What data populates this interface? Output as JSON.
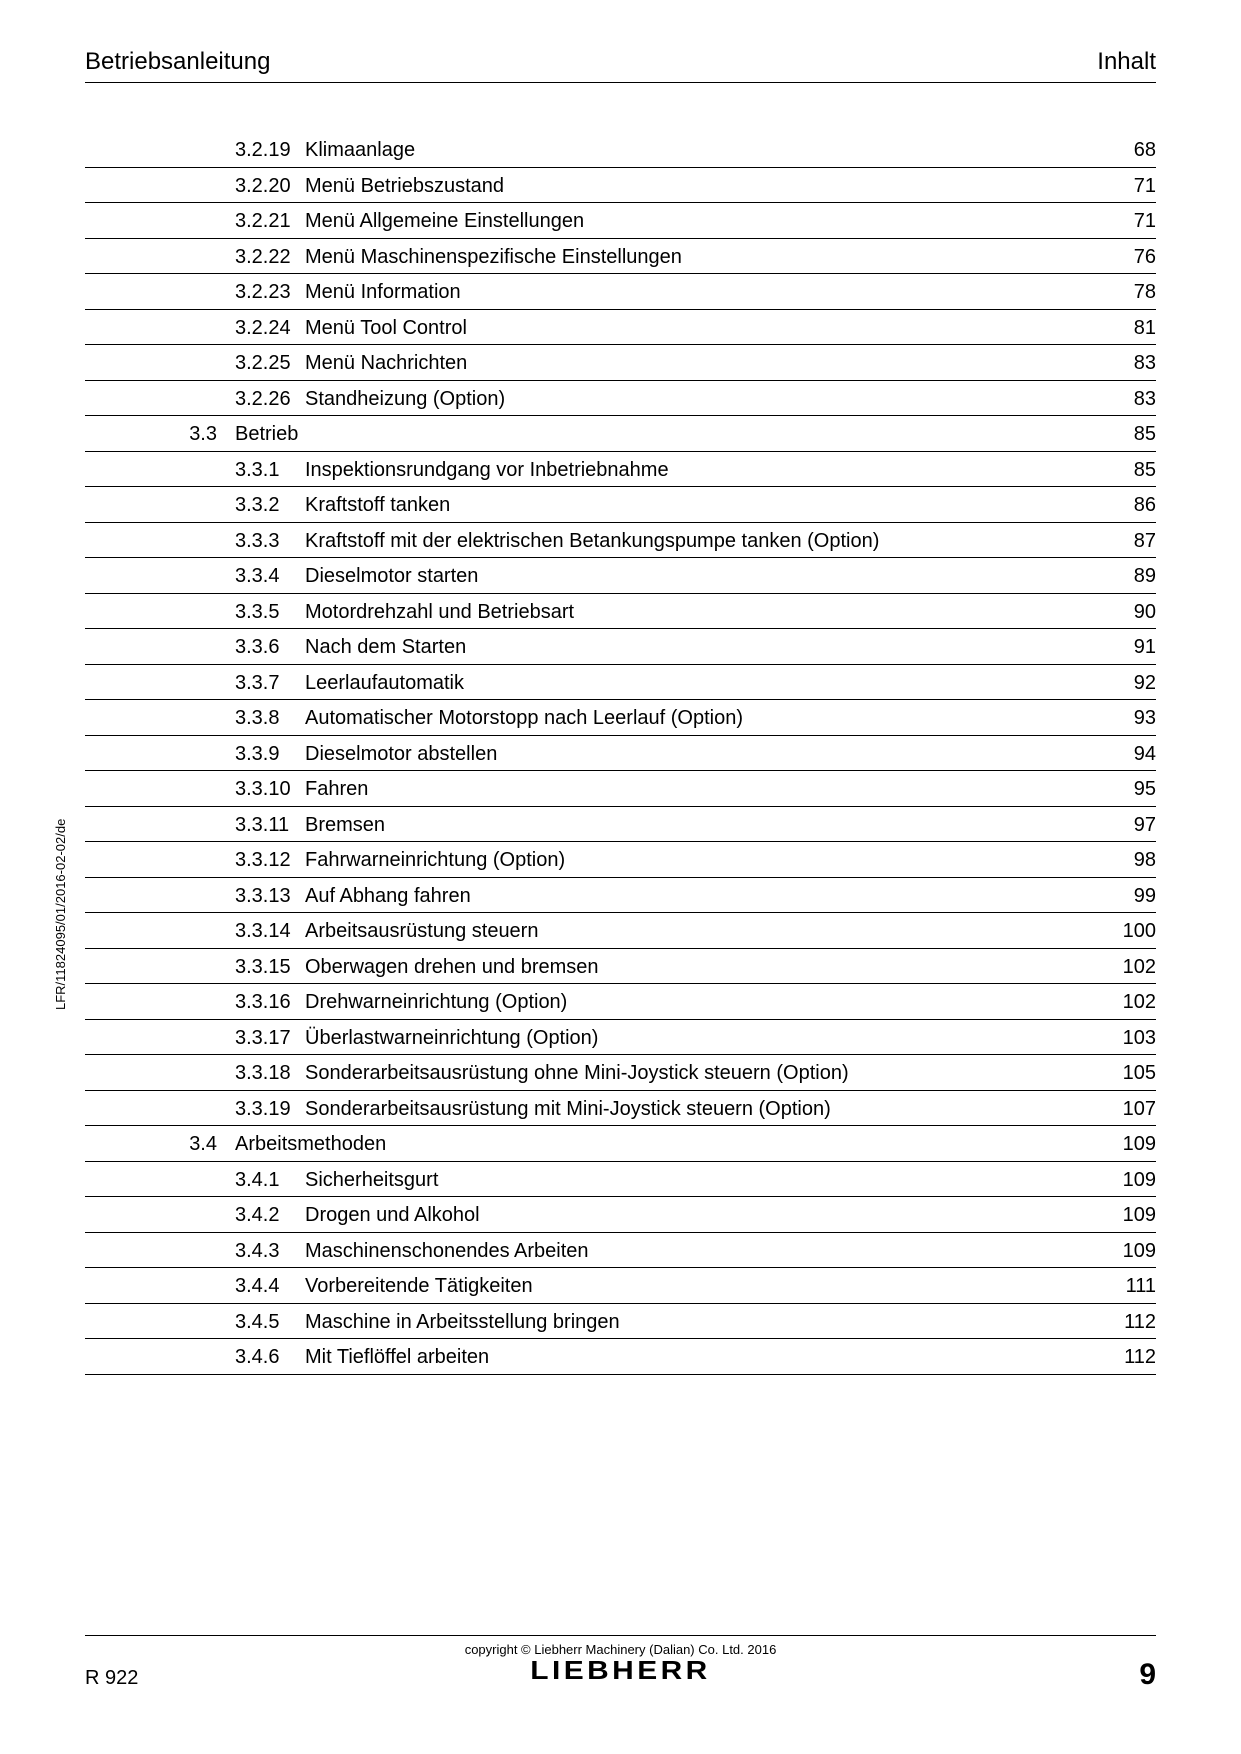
{
  "header": {
    "left": "Betriebsanleitung",
    "right": "Inhalt"
  },
  "sideLabel": "LFR/11824095/01/2016-02-02/de",
  "footer": {
    "copyright": "copyright © Liebherr Machinery (Dalian) Co. Ltd. 2016",
    "logo": "LIEBHERR",
    "model": "R 922",
    "pageNumber": "9"
  },
  "toc": [
    {
      "section": "",
      "num": "3.2.19",
      "title": "Klimaanlage",
      "page": "68"
    },
    {
      "section": "",
      "num": "3.2.20",
      "title": "Menü Betriebszustand",
      "page": "71"
    },
    {
      "section": "",
      "num": "3.2.21",
      "title": "Menü Allgemeine Einstellungen",
      "page": "71"
    },
    {
      "section": "",
      "num": "3.2.22",
      "title": "Menü Maschinenspezifische Einstellungen",
      "page": "76"
    },
    {
      "section": "",
      "num": "3.2.23",
      "title": "Menü Information",
      "page": "78"
    },
    {
      "section": "",
      "num": "3.2.24",
      "title": "Menü Tool Control",
      "page": "81"
    },
    {
      "section": "",
      "num": "3.2.25",
      "title": "Menü Nachrichten",
      "page": "83"
    },
    {
      "section": "",
      "num": "3.2.26",
      "title": "Standheizung (Option)",
      "page": "83"
    },
    {
      "section": "3.3",
      "num": "Betrieb",
      "title": "",
      "page": "85",
      "isSection": true
    },
    {
      "section": "",
      "num": "3.3.1",
      "title": "Inspektionsrundgang vor Inbetriebnahme",
      "page": "85"
    },
    {
      "section": "",
      "num": "3.3.2",
      "title": "Kraftstoff tanken",
      "page": "86"
    },
    {
      "section": "",
      "num": "3.3.3",
      "title": "Kraftstoff mit der elektrischen Betankungspumpe tanken (Option)",
      "page": "87"
    },
    {
      "section": "",
      "num": "3.3.4",
      "title": "Dieselmotor starten",
      "page": "89"
    },
    {
      "section": "",
      "num": "3.3.5",
      "title": "Motordrehzahl und Betriebsart",
      "page": "90"
    },
    {
      "section": "",
      "num": "3.3.6",
      "title": "Nach dem Starten",
      "page": "91"
    },
    {
      "section": "",
      "num": "3.3.7",
      "title": "Leerlaufautomatik",
      "page": "92"
    },
    {
      "section": "",
      "num": "3.3.8",
      "title": "Automatischer Motorstopp nach Leerlauf (Option)",
      "page": "93"
    },
    {
      "section": "",
      "num": "3.3.9",
      "title": "Dieselmotor abstellen",
      "page": "94"
    },
    {
      "section": "",
      "num": "3.3.10",
      "title": "Fahren",
      "page": "95"
    },
    {
      "section": "",
      "num": "3.3.11",
      "title": "Bremsen",
      "page": "97"
    },
    {
      "section": "",
      "num": "3.3.12",
      "title": "Fahrwarneinrichtung (Option)",
      "page": "98"
    },
    {
      "section": "",
      "num": "3.3.13",
      "title": "Auf Abhang fahren",
      "page": "99"
    },
    {
      "section": "",
      "num": "3.3.14",
      "title": "Arbeitsausrüstung steuern",
      "page": "100"
    },
    {
      "section": "",
      "num": "3.3.15",
      "title": "Oberwagen drehen und bremsen",
      "page": "102"
    },
    {
      "section": "",
      "num": "3.3.16",
      "title": "Drehwarneinrichtung (Option)",
      "page": "102"
    },
    {
      "section": "",
      "num": "3.3.17",
      "title": "Überlastwarneinrichtung (Option)",
      "page": "103"
    },
    {
      "section": "",
      "num": "3.3.18",
      "title": "Sonderarbeitsausrüstung ohne Mini-Joystick steuern (Option)",
      "page": "105"
    },
    {
      "section": "",
      "num": "3.3.19",
      "title": "Sonderarbeitsausrüstung mit Mini-Joystick steuern (Option)",
      "page": "107"
    },
    {
      "section": "3.4",
      "num": "Arbeitsmethoden",
      "title": "",
      "page": "109",
      "isSection": true
    },
    {
      "section": "",
      "num": "3.4.1",
      "title": "Sicherheitsgurt",
      "page": "109"
    },
    {
      "section": "",
      "num": "3.4.2",
      "title": "Drogen und Alkohol",
      "page": "109"
    },
    {
      "section": "",
      "num": "3.4.3",
      "title": "Maschinenschonendes Arbeiten",
      "page": "109"
    },
    {
      "section": "",
      "num": "3.4.4",
      "title": "Vorbereitende Tätigkeiten",
      "page": "111"
    },
    {
      "section": "",
      "num": "3.4.5",
      "title": "Maschine in Arbeitsstellung bringen",
      "page": "112"
    },
    {
      "section": "",
      "num": "3.4.6",
      "title": "Mit Tieflöffel arbeiten",
      "page": "112"
    }
  ]
}
